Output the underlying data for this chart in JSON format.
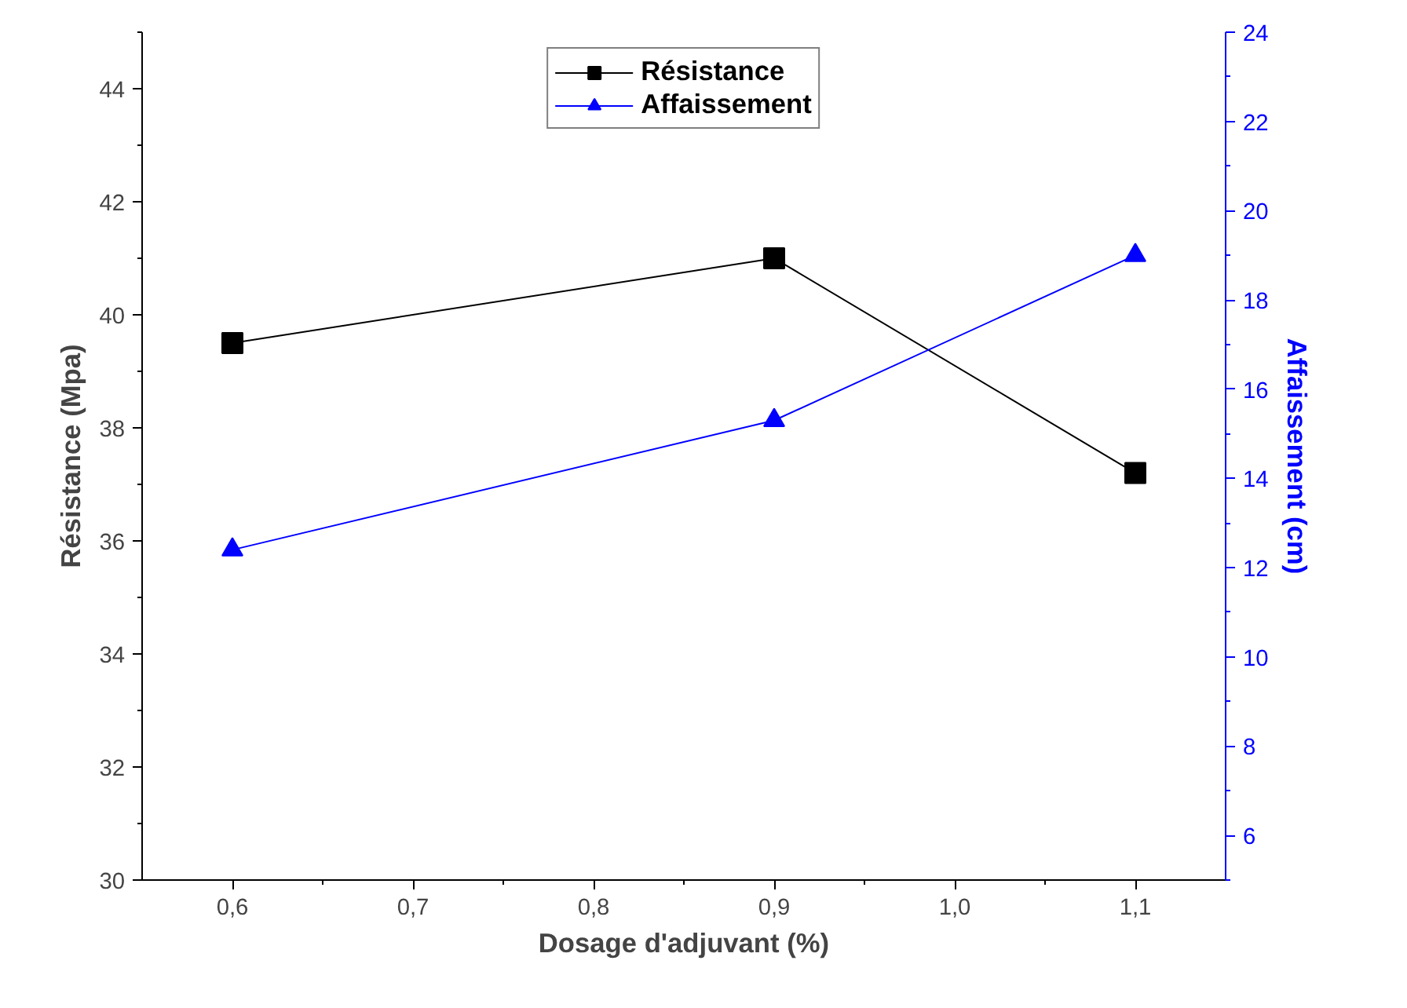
{
  "chart_data": {
    "type": "line",
    "xlabel": "Dosage d'adjuvant (%)",
    "ylabel": "Résistance (Mpa)",
    "y2label": "Affaissement (cm)",
    "x": [
      0.6,
      0.9,
      1.1
    ],
    "series": [
      {
        "name": "Résistance",
        "color": "#000000",
        "marker": "square",
        "values": [
          39.5,
          41.0,
          37.2
        ]
      },
      {
        "name": "Affaissement",
        "color": "#0000ff",
        "marker": "triangle",
        "axis": "y2",
        "values": [
          12.4,
          15.3,
          19.0
        ]
      }
    ],
    "xlim": [
      0.55,
      1.15
    ],
    "xticks": [
      {
        "value": 0.6,
        "label": "0,6"
      },
      {
        "value": 0.7,
        "label": "0,7"
      },
      {
        "value": 0.8,
        "label": "0,8"
      },
      {
        "value": 0.9,
        "label": "0,9"
      },
      {
        "value": 1.0,
        "label": "1,0"
      },
      {
        "value": 1.1,
        "label": "1,1"
      }
    ],
    "ylim": [
      30,
      45
    ],
    "yticks": [
      30,
      32,
      34,
      36,
      38,
      40,
      42,
      44
    ],
    "y2lim": [
      5,
      24
    ],
    "y2ticks": [
      6,
      8,
      10,
      12,
      14,
      16,
      18,
      20,
      22,
      24
    ],
    "grid": false,
    "legend": "top",
    "line_style": "solid"
  }
}
